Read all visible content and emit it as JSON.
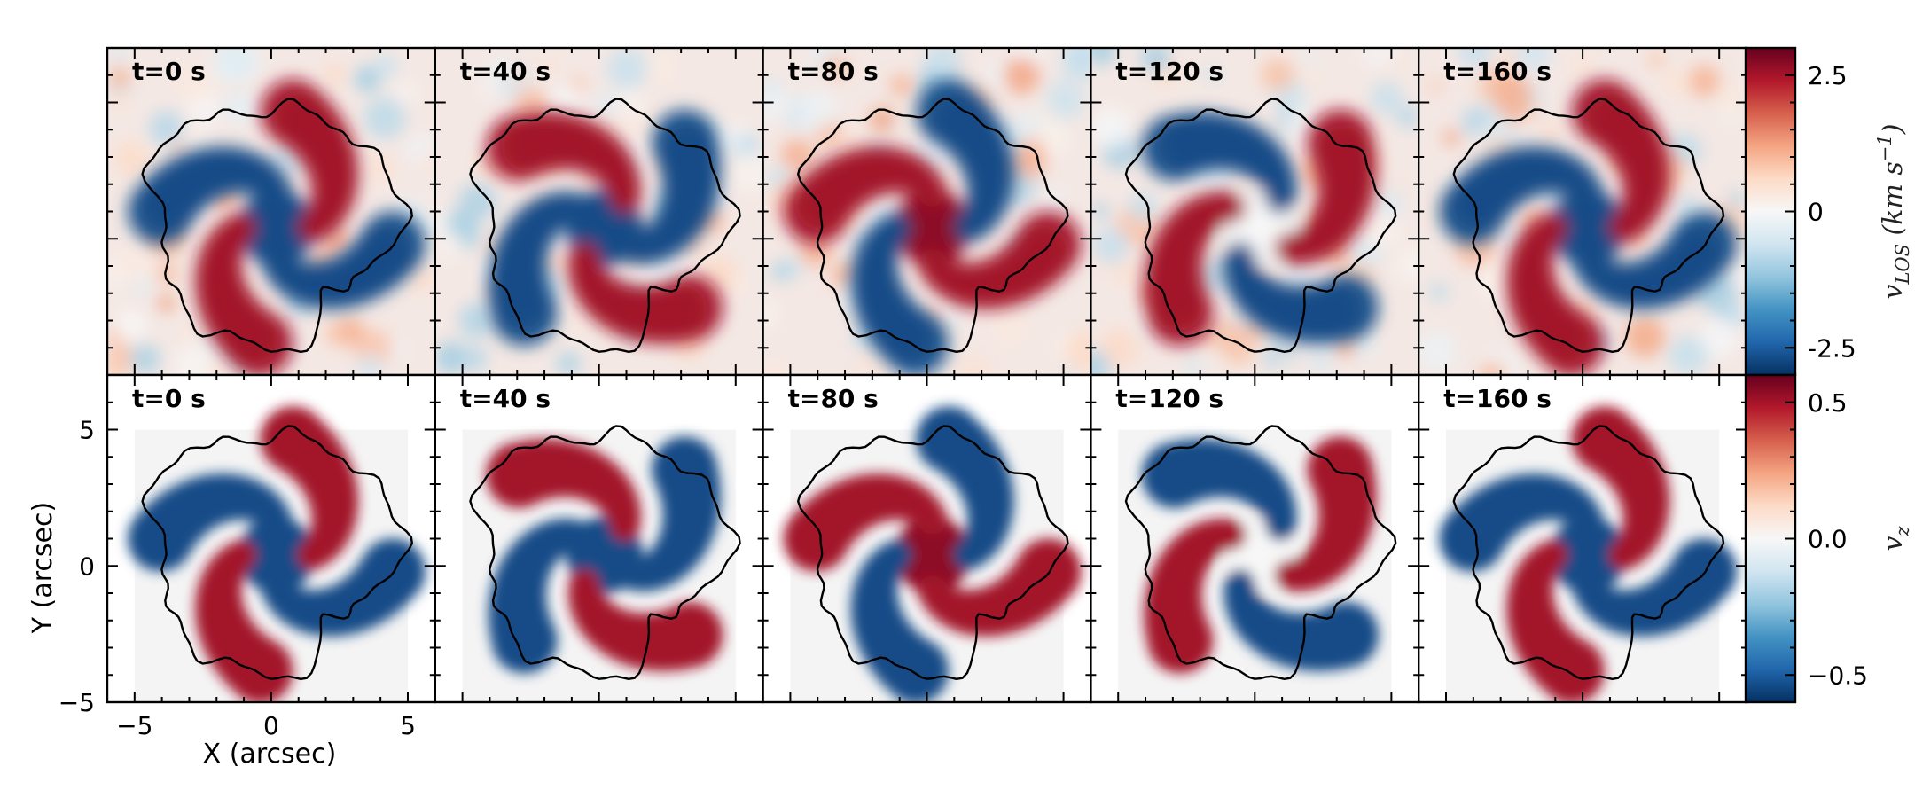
{
  "chart_data": {
    "type": "heatmap",
    "rows": [
      {
        "name": "observed",
        "panel_labels": [
          "t=0 s",
          "t=40 s",
          "t=80 s",
          "t=120 s",
          "t=160 s"
        ],
        "colorbar": {
          "label": "v_LOS (km s^-1)",
          "label_main": "v",
          "label_sub": "LOS",
          "label_units": " (km s",
          "label_sup": "−1",
          "label_close": ")",
          "range": [
            -3,
            3
          ],
          "ticks": [
            2.5,
            0,
            -2.5
          ],
          "tick_labels": [
            "2.5",
            "0",
            "-2.5"
          ]
        }
      },
      {
        "name": "model",
        "panel_labels": [
          "t=0 s",
          "t=40 s",
          "t=80 s",
          "t=120 s",
          "t=160 s"
        ],
        "colorbar": {
          "label": "v_z",
          "label_main": "v",
          "label_sub": "z",
          "range": [
            -0.6,
            0.6
          ],
          "ticks": [
            0.5,
            0.0,
            -0.5
          ],
          "tick_labels": [
            "0.5",
            "0.0",
            "−0.5"
          ]
        }
      }
    ],
    "xlabel": "X (arcsec)",
    "ylabel": "Y (arcsec)",
    "xlim": [
      -6,
      6
    ],
    "ylim": [
      -5,
      7
    ],
    "xticks": [
      -5,
      0,
      5
    ],
    "xtick_labels": [
      "−5",
      "0",
      "5"
    ],
    "yticks": [
      5,
      0,
      -5
    ],
    "ytick_labels": [
      "5",
      "0",
      "−5"
    ],
    "colormap": "RdBu_r",
    "colors": {
      "positive": "#67001f",
      "negative": "#053061",
      "neutral": "#f7f7f7",
      "contour": "#000000",
      "model_background": "#f4f4f4"
    },
    "panel_arm_phase_deg": [
      0,
      55,
      180,
      235,
      0
    ],
    "grid": false
  }
}
